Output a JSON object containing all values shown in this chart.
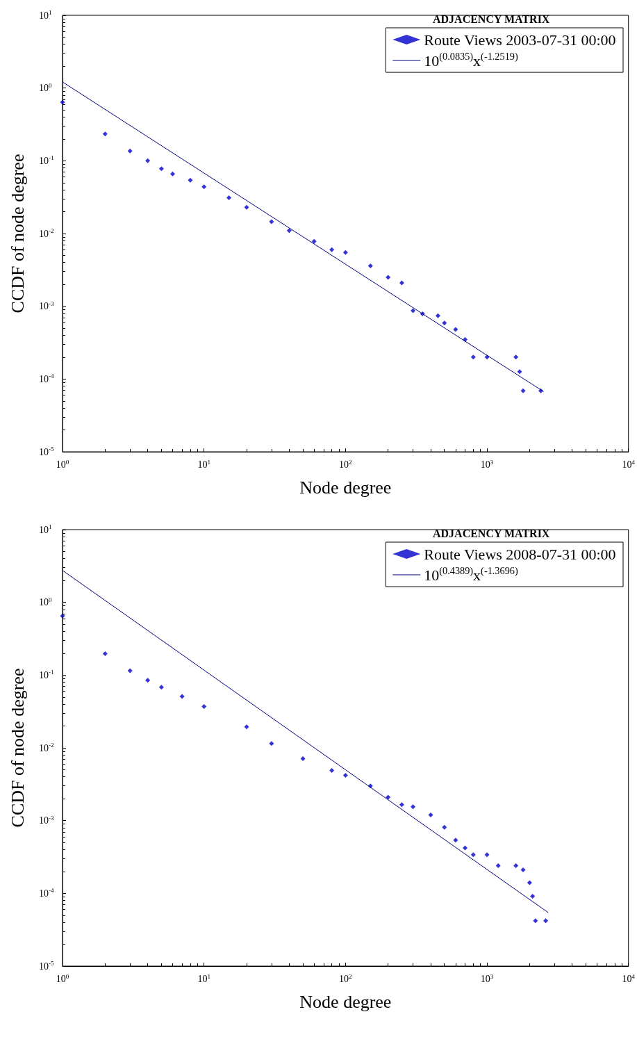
{
  "chart_data": [
    {
      "type": "scatter",
      "xlabel": "Node degree",
      "ylabel": "CCDF of node degree",
      "legend_title": "ADJACENCY MATRIX",
      "legend": "top right",
      "grid": false,
      "log": "xy",
      "marker": "diamond",
      "xlim": [
        1,
        10000
      ],
      "ylim": [
        1e-05,
        10
      ],
      "xticks": [
        {
          "value": 1,
          "label": "10$^{0}$"
        },
        {
          "value": 10,
          "label": "10$^{1}$"
        },
        {
          "value": 100,
          "label": "10$^{2}$"
        },
        {
          "value": 1000,
          "label": "10$^{3}$"
        },
        {
          "value": 10000,
          "label": "10$^{4}$"
        }
      ],
      "yticks": [
        {
          "value": 1e-05,
          "label": "10$^{-5}$"
        },
        {
          "value": 0.0001,
          "label": "10$^{-4}$"
        },
        {
          "value": 0.001,
          "label": "10$^{-3}$"
        },
        {
          "value": 0.01,
          "label": "10$^{-2}$"
        },
        {
          "value": 0.1,
          "label": "10$^{-1}$"
        },
        {
          "value": 1,
          "label": "10$^{0}$"
        },
        {
          "value": 10,
          "label": "10$^{1}$"
        }
      ],
      "series": [
        {
          "name": "Route Views 2003-07-31 00:00",
          "color": "#0000cc",
          "x": [
            1,
            2,
            3,
            4,
            5,
            6,
            8,
            10,
            15,
            20,
            30,
            40,
            60,
            80,
            100,
            150,
            200,
            250,
            300,
            350,
            450,
            500,
            600,
            700,
            800,
            1000,
            1600,
            1700,
            1800,
            2400
          ],
          "values": [
            0.64,
            0.234,
            0.136,
            0.1,
            0.078,
            0.066,
            0.054,
            0.044,
            0.031,
            0.023,
            0.0145,
            0.011,
            0.0078,
            0.006,
            0.0055,
            0.0036,
            0.0025,
            0.0021,
            0.00087,
            0.00079,
            0.00074,
            0.00059,
            0.00048,
            0.00035,
            0.0002,
            0.0002,
            0.0002,
            0.000126,
            6.9e-05,
            6.9e-05
          ]
        },
        {
          "name": "10$^{(0.0835)}$x$^{(-1.2519)}$",
          "type": "line",
          "marker": "none",
          "color": "#000080",
          "x": [
            1,
            10,
            100,
            1000,
            2500
          ],
          "values": [
            1.212,
            0.0678,
            0.00379,
            0.000212,
            6.76e-05
          ]
        }
      ]
    },
    {
      "type": "scatter",
      "xlabel": "Node degree",
      "ylabel": "CCDF of node degree",
      "legend_title": "ADJACENCY MATRIX",
      "legend": "top right",
      "grid": false,
      "log": "xy",
      "marker": "diamond",
      "xlim": [
        1,
        10000
      ],
      "ylim": [
        1e-05,
        10
      ],
      "xticks": [
        {
          "value": 1,
          "label": "10$^{0}$"
        },
        {
          "value": 10,
          "label": "10$^{1}$"
        },
        {
          "value": 100,
          "label": "10$^{2}$"
        },
        {
          "value": 1000,
          "label": "10$^{3}$"
        },
        {
          "value": 10000,
          "label": "10$^{4}$"
        }
      ],
      "yticks": [
        {
          "value": 1e-05,
          "label": "10$^{-5}$"
        },
        {
          "value": 0.0001,
          "label": "10$^{-4}$"
        },
        {
          "value": 0.001,
          "label": "10$^{-3}$"
        },
        {
          "value": 0.01,
          "label": "10$^{-2}$"
        },
        {
          "value": 0.1,
          "label": "10$^{-1}$"
        },
        {
          "value": 1,
          "label": "10$^{0}$"
        },
        {
          "value": 10,
          "label": "10$^{1}$"
        }
      ],
      "series": [
        {
          "name": "Route Views 2008-07-31 00:00",
          "color": "#0000cc",
          "x": [
            1,
            2,
            3,
            4,
            5,
            7,
            10,
            20,
            30,
            50,
            80,
            100,
            150,
            200,
            250,
            300,
            400,
            500,
            600,
            700,
            800,
            1000,
            1200,
            1600,
            1800,
            2000,
            2100,
            2200,
            2600
          ],
          "values": [
            0.65,
            0.197,
            0.115,
            0.085,
            0.068,
            0.051,
            0.037,
            0.0195,
            0.0115,
            0.0071,
            0.0049,
            0.0042,
            0.003,
            0.0021,
            0.00166,
            0.00155,
            0.0012,
            0.00081,
            0.00054,
            0.00042,
            0.00034,
            0.00034,
            0.00024,
            0.00024,
            0.00021,
            0.00014,
            9.1e-05,
            4.2e-05,
            4.2e-05
          ]
        },
        {
          "name": "10$^{(0.4389)}$x$^{(-1.3696)}$",
          "type": "line",
          "marker": "none",
          "color": "#000080",
          "x": [
            1,
            10,
            100,
            1000,
            2700
          ],
          "values": [
            2.747,
            0.1172,
            0.005,
            0.000213,
            5.47e-05
          ]
        }
      ]
    }
  ]
}
